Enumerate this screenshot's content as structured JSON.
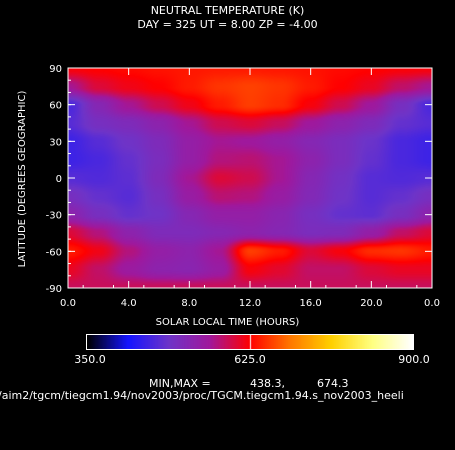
{
  "header": {
    "title": "NEUTRAL TEMPERATURE (K)",
    "subtitle": "DAY = 325   UT =   8.00   ZP =   -4.00"
  },
  "colorbar": {
    "min_label": "350.0",
    "mid_label": "625.0",
    "max_label": "900.0",
    "min": 350.0,
    "mid": 625.0,
    "max": 900.0
  },
  "footer": {
    "minmax_label": "MIN,MAX =",
    "minmax_min": "438.3,",
    "minmax_max": "674.3",
    "path": "/aim2/tgcm/tiegcm1.94/nov2003/proc/TGCM.tiegcm1.94.s_nov2003_heeli"
  },
  "chart_data": {
    "type": "heatmap",
    "xlabel": "SOLAR LOCAL TIME (HOURS)",
    "ylabel": "LATITUDE (DEGREES GEOGRAPHIC)",
    "xlim": [
      0,
      24
    ],
    "ylim": [
      -90,
      90
    ],
    "x_ticks": [
      "0.0",
      "4.0",
      "8.0",
      "12.0",
      "16.0",
      "20.0",
      "0.0"
    ],
    "y_ticks": [
      "90",
      "60",
      "30",
      "0",
      "-30",
      "-60",
      "-90"
    ],
    "value_min": 438.3,
    "value_max": 674.3,
    "colorscale": [
      "#000000",
      "#1414ff",
      "#6e34c8",
      "#a0189c",
      "#ff0000",
      "#ff7800",
      "#ffd000",
      "#ffff80",
      "#ffffff"
    ],
    "x_hours": [
      0,
      2,
      4,
      6,
      8,
      10,
      12,
      14,
      16,
      18,
      20,
      22,
      24
    ],
    "y_lat": [
      90,
      75,
      60,
      45,
      30,
      15,
      0,
      -15,
      -30,
      -45,
      -60,
      -75,
      -90
    ],
    "z": [
      [
        620,
        625,
        630,
        635,
        638,
        640,
        640,
        638,
        635,
        630,
        626,
        622,
        620
      ],
      [
        560,
        600,
        615,
        625,
        640,
        655,
        662,
        655,
        640,
        625,
        610,
        580,
        560
      ],
      [
        460,
        520,
        560,
        590,
        615,
        640,
        660,
        650,
        620,
        590,
        555,
        500,
        460
      ],
      [
        470,
        500,
        510,
        530,
        560,
        590,
        600,
        585,
        555,
        530,
        510,
        480,
        470
      ],
      [
        450,
        470,
        490,
        510,
        540,
        560,
        555,
        540,
        520,
        505,
        485,
        460,
        450
      ],
      [
        450,
        460,
        480,
        505,
        540,
        570,
        575,
        560,
        530,
        505,
        480,
        460,
        450
      ],
      [
        470,
        465,
        475,
        510,
        560,
        600,
        590,
        560,
        520,
        495,
        470,
        465,
        470
      ],
      [
        500,
        480,
        470,
        500,
        545,
        575,
        570,
        545,
        515,
        490,
        470,
        480,
        500
      ],
      [
        530,
        500,
        480,
        490,
        520,
        540,
        540,
        525,
        500,
        480,
        475,
        500,
        530
      ],
      [
        600,
        570,
        530,
        510,
        510,
        520,
        530,
        520,
        505,
        510,
        540,
        580,
        600
      ],
      [
        640,
        615,
        570,
        540,
        530,
        560,
        660,
        640,
        600,
        620,
        650,
        655,
        640
      ],
      [
        610,
        580,
        550,
        530,
        525,
        545,
        620,
        605,
        580,
        580,
        600,
        610,
        610
      ],
      [
        585,
        585,
        585,
        585,
        585,
        585,
        585,
        585,
        585,
        585,
        585,
        585,
        585
      ]
    ]
  }
}
